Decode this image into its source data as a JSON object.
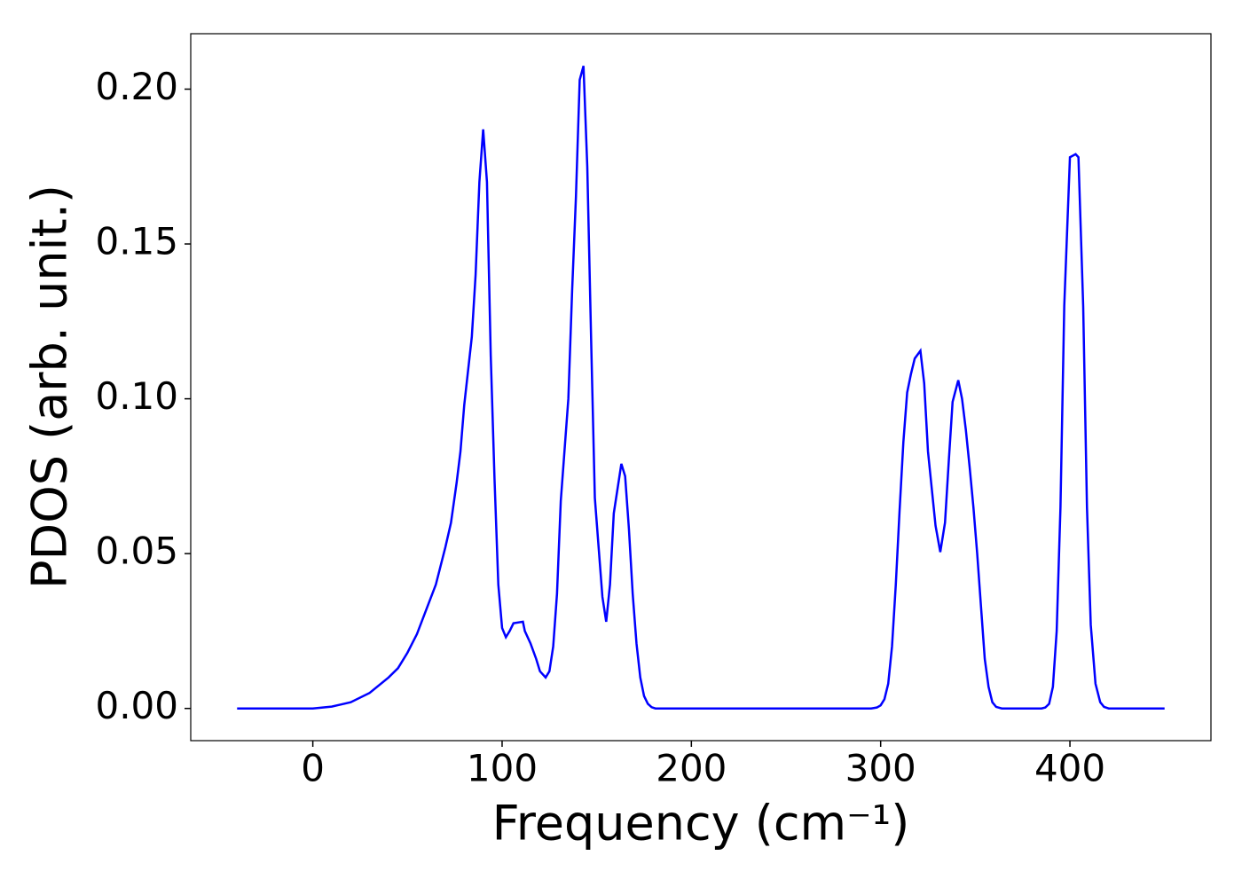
{
  "chart_data": {
    "type": "line",
    "xlabel": "Frequency (cm⁻¹)",
    "ylabel": "PDOS (arb. unit.)",
    "x": [
      -40,
      -20,
      0,
      10,
      20,
      30,
      40,
      45,
      50,
      55,
      60,
      65,
      70,
      73,
      76,
      78,
      80,
      84,
      86,
      88,
      90,
      92,
      94,
      96,
      98,
      100,
      102,
      104,
      106,
      111,
      112,
      115,
      118,
      120,
      123,
      125,
      127,
      129,
      131,
      135,
      137,
      139,
      141,
      143,
      145,
      147,
      149,
      153,
      155,
      157,
      159,
      163,
      165,
      167,
      169,
      171,
      173,
      175,
      177,
      179,
      181,
      200,
      250,
      295,
      298,
      300,
      302,
      304,
      306,
      308,
      310,
      312,
      314,
      316,
      318,
      321,
      323,
      325,
      329,
      331.5,
      334,
      336,
      338,
      341,
      343,
      345,
      347,
      349,
      351,
      353,
      355,
      357,
      359,
      361,
      364,
      385,
      387,
      389,
      391,
      393,
      395,
      397,
      400,
      403,
      404.5,
      407,
      409,
      411,
      413.5,
      416,
      418,
      420.5,
      450
    ],
    "series": [
      {
        "name": "PDOS",
        "color": "#0000ff",
        "values": [
          0,
          0,
          0,
          0.0006,
          0.002,
          0.005,
          0.01,
          0.013,
          0.018,
          0.024,
          0.032,
          0.04,
          0.052,
          0.06,
          0.073,
          0.083,
          0.098,
          0.12,
          0.14,
          0.17,
          0.187,
          0.17,
          0.114,
          0.074,
          0.04,
          0.026,
          0.023,
          0.025,
          0.0275,
          0.028,
          0.025,
          0.021,
          0.016,
          0.012,
          0.01,
          0.012,
          0.02,
          0.037,
          0.067,
          0.1,
          0.135,
          0.165,
          0.203,
          0.2075,
          0.175,
          0.12,
          0.068,
          0.036,
          0.028,
          0.04,
          0.063,
          0.079,
          0.075,
          0.058,
          0.037,
          0.021,
          0.01,
          0.004,
          0.0015,
          0.0004,
          0,
          0,
          0,
          0,
          0.0003,
          0.001,
          0.003,
          0.008,
          0.02,
          0.04,
          0.064,
          0.086,
          0.102,
          0.108,
          0.113,
          0.1155,
          0.105,
          0.083,
          0.059,
          0.0505,
          0.06,
          0.08,
          0.099,
          0.106,
          0.1,
          0.09,
          0.078,
          0.065,
          0.05,
          0.033,
          0.016,
          0.007,
          0.002,
          0.0005,
          0,
          0,
          0.0003,
          0.0015,
          0.007,
          0.025,
          0.065,
          0.13,
          0.178,
          0.179,
          0.178,
          0.13,
          0.065,
          0.027,
          0.008,
          0.002,
          0.0005,
          0,
          0
        ]
      }
    ],
    "xlim": [
      -64.5,
      474.5
    ],
    "ylim": [
      -0.0104,
      0.2179
    ],
    "xticks": [
      0,
      100,
      200,
      300,
      400
    ],
    "yticks": [
      {
        "value": 0,
        "label": "0.00"
      },
      {
        "value": 0.05,
        "label": "0.05"
      },
      {
        "value": 0.1,
        "label": "0.10"
      },
      {
        "value": 0.15,
        "label": "0.15"
      },
      {
        "value": 0.2,
        "label": "0.20"
      }
    ]
  }
}
